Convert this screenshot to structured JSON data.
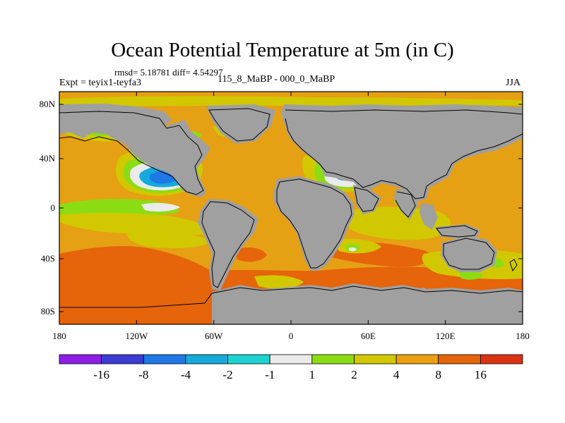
{
  "title": "Ocean Potential Temperature at 5m (in C)",
  "stats": "rmsd= 5.18781 diff= 4.54297",
  "expt": "Expt = teyix1-teyfa3",
  "case_line": "115_8_MaBP - 000_0_MaBP",
  "season": "JJA",
  "axes": {
    "lat_ticks": [
      "80N",
      "40N",
      "0",
      "40S",
      "80S"
    ],
    "lon_ticks": [
      "180",
      "120W",
      "60W",
      "0",
      "60E",
      "120E",
      "180"
    ]
  },
  "colorbar": {
    "labels": [
      "-16",
      "-8",
      "-4",
      "-2",
      "-1",
      "1",
      "2",
      "4",
      "8",
      "16"
    ],
    "colors": [
      "#8c1ee6",
      "#3c3cd2",
      "#1e78e6",
      "#14aadc",
      "#1ed2d2",
      "#ebebeb",
      "#8cdc14",
      "#d2c800",
      "#eba014",
      "#e6640a",
      "#dc3214"
    ]
  },
  "map_colors": {
    "land": "#a0a0a0",
    "background": "#e6a014"
  }
}
